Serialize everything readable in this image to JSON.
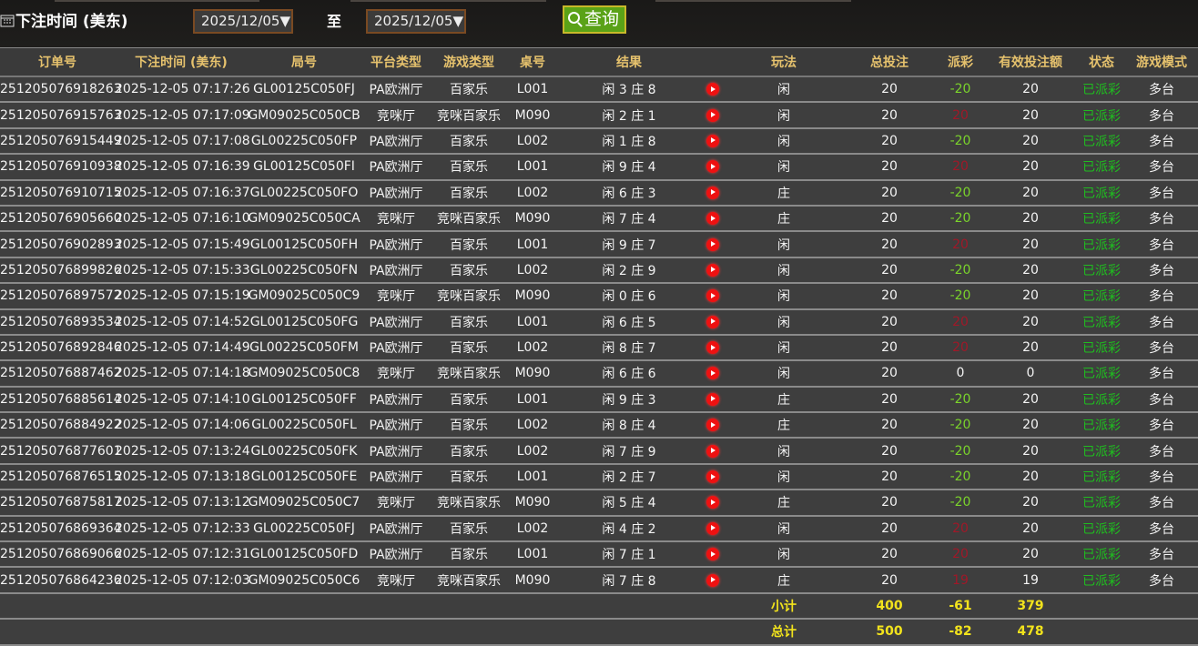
{
  "filter": {
    "label": "下注时间 (美东)",
    "start_date": "2025/12/05▼",
    "to": "至",
    "end_date": "2025/12/05▼",
    "query": "查询"
  },
  "columns": [
    "订单号",
    "下注时间 (美东)",
    "局号",
    "平台类型",
    "游戏类型",
    "桌号",
    "结果",
    "",
    "玩法",
    "总投注",
    "派彩",
    "有效投注额",
    "状态",
    "游戏模式"
  ],
  "colors": {
    "negative": "#7bd42b",
    "positive": "#a01828",
    "status": "#1fbd1f",
    "header": "#e6c26d",
    "totals": "#f2e31c"
  },
  "rows": [
    [
      "251205076918263",
      "2025-12-05 07:17:26",
      "GL00125C050FJ",
      "PA欧洲厅",
      "百家乐",
      "L001",
      "闲 3 庄 8",
      "闲",
      "20",
      "-20",
      "20",
      "已派彩",
      "多台"
    ],
    [
      "251205076915763",
      "2025-12-05 07:17:09",
      "GM09025C050CB",
      "竞咪厅",
      "竞咪百家乐",
      "M090",
      "闲 2 庄 1",
      "闲",
      "20",
      "20",
      "20",
      "已派彩",
      "多台"
    ],
    [
      "251205076915449",
      "2025-12-05 07:17:08",
      "GL00225C050FP",
      "PA欧洲厅",
      "百家乐",
      "L002",
      "闲 1 庄 8",
      "闲",
      "20",
      "-20",
      "20",
      "已派彩",
      "多台"
    ],
    [
      "251205076910938",
      "2025-12-05 07:16:39",
      "GL00125C050FI",
      "PA欧洲厅",
      "百家乐",
      "L001",
      "闲 9 庄 4",
      "闲",
      "20",
      "20",
      "20",
      "已派彩",
      "多台"
    ],
    [
      "251205076910715",
      "2025-12-05 07:16:37",
      "GL00225C050FO",
      "PA欧洲厅",
      "百家乐",
      "L002",
      "闲 6 庄 3",
      "庄",
      "20",
      "-20",
      "20",
      "已派彩",
      "多台"
    ],
    [
      "251205076905660",
      "2025-12-05 07:16:10",
      "GM09025C050CA",
      "竞咪厅",
      "竞咪百家乐",
      "M090",
      "闲 7 庄 4",
      "庄",
      "20",
      "-20",
      "20",
      "已派彩",
      "多台"
    ],
    [
      "251205076902893",
      "2025-12-05 07:15:49",
      "GL00125C050FH",
      "PA欧洲厅",
      "百家乐",
      "L001",
      "闲 9 庄 7",
      "闲",
      "20",
      "20",
      "20",
      "已派彩",
      "多台"
    ],
    [
      "251205076899826",
      "2025-12-05 07:15:33",
      "GL00225C050FN",
      "PA欧洲厅",
      "百家乐",
      "L002",
      "闲 2 庄 9",
      "闲",
      "20",
      "-20",
      "20",
      "已派彩",
      "多台"
    ],
    [
      "251205076897572",
      "2025-12-05 07:15:19",
      "GM09025C050C9",
      "竞咪厅",
      "竞咪百家乐",
      "M090",
      "闲 0 庄 6",
      "闲",
      "20",
      "-20",
      "20",
      "已派彩",
      "多台"
    ],
    [
      "251205076893534",
      "2025-12-05 07:14:52",
      "GL00125C050FG",
      "PA欧洲厅",
      "百家乐",
      "L001",
      "闲 6 庄 5",
      "闲",
      "20",
      "20",
      "20",
      "已派彩",
      "多台"
    ],
    [
      "251205076892846",
      "2025-12-05 07:14:49",
      "GL00225C050FM",
      "PA欧洲厅",
      "百家乐",
      "L002",
      "闲 8 庄 7",
      "闲",
      "20",
      "20",
      "20",
      "已派彩",
      "多台"
    ],
    [
      "251205076887462",
      "2025-12-05 07:14:18",
      "GM09025C050C8",
      "竞咪厅",
      "竞咪百家乐",
      "M090",
      "闲 6 庄 6",
      "闲",
      "20",
      "0",
      "0",
      "已派彩",
      "多台"
    ],
    [
      "251205076885614",
      "2025-12-05 07:14:10",
      "GL00125C050FF",
      "PA欧洲厅",
      "百家乐",
      "L001",
      "闲 9 庄 3",
      "庄",
      "20",
      "-20",
      "20",
      "已派彩",
      "多台"
    ],
    [
      "251205076884922",
      "2025-12-05 07:14:06",
      "GL00225C050FL",
      "PA欧洲厅",
      "百家乐",
      "L002",
      "闲 8 庄 4",
      "庄",
      "20",
      "-20",
      "20",
      "已派彩",
      "多台"
    ],
    [
      "251205076877601",
      "2025-12-05 07:13:24",
      "GL00225C050FK",
      "PA欧洲厅",
      "百家乐",
      "L002",
      "闲 7 庄 9",
      "闲",
      "20",
      "-20",
      "20",
      "已派彩",
      "多台"
    ],
    [
      "251205076876515",
      "2025-12-05 07:13:18",
      "GL00125C050FE",
      "PA欧洲厅",
      "百家乐",
      "L001",
      "闲 2 庄 7",
      "闲",
      "20",
      "-20",
      "20",
      "已派彩",
      "多台"
    ],
    [
      "251205076875817",
      "2025-12-05 07:13:12",
      "GM09025C050C7",
      "竞咪厅",
      "竞咪百家乐",
      "M090",
      "闲 5 庄 4",
      "庄",
      "20",
      "-20",
      "20",
      "已派彩",
      "多台"
    ],
    [
      "251205076869364",
      "2025-12-05 07:12:33",
      "GL00225C050FJ",
      "PA欧洲厅",
      "百家乐",
      "L002",
      "闲 4 庄 2",
      "闲",
      "20",
      "20",
      "20",
      "已派彩",
      "多台"
    ],
    [
      "251205076869066",
      "2025-12-05 07:12:31",
      "GL00125C050FD",
      "PA欧洲厅",
      "百家乐",
      "L001",
      "闲 7 庄 1",
      "闲",
      "20",
      "20",
      "20",
      "已派彩",
      "多台"
    ],
    [
      "251205076864236",
      "2025-12-05 07:12:03",
      "GM09025C050C6",
      "竞咪厅",
      "竞咪百家乐",
      "M090",
      "闲 7 庄 8",
      "庄",
      "20",
      "19",
      "19",
      "已派彩",
      "多台"
    ]
  ],
  "subtotal": {
    "label": "小计",
    "bet": "400",
    "payout": "-61",
    "valid": "379"
  },
  "total": {
    "label": "总计",
    "bet": "500",
    "payout": "-82",
    "valid": "478"
  }
}
